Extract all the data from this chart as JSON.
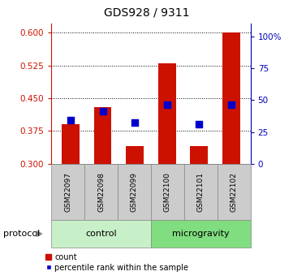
{
  "title": "GDS928 / 9311",
  "samples": [
    "GSM22097",
    "GSM22098",
    "GSM22099",
    "GSM22100",
    "GSM22101",
    "GSM22102"
  ],
  "red_bar_tops": [
    0.39,
    0.43,
    0.34,
    0.53,
    0.34,
    0.601
  ],
  "blue_sq_vals": [
    0.4,
    0.42,
    0.395,
    0.435,
    0.39,
    0.435
  ],
  "bar_bottom": 0.3,
  "ylim_left": [
    0.3,
    0.62
  ],
  "yticks_left": [
    0.3,
    0.375,
    0.45,
    0.525,
    0.6
  ],
  "ylim_right": [
    0,
    110
  ],
  "yticks_right": [
    0,
    25,
    50,
    75,
    100
  ],
  "yticklabels_right": [
    "0",
    "25",
    "50",
    "75",
    "100%"
  ],
  "groups": [
    {
      "label": "control",
      "indices": [
        0,
        1,
        2
      ],
      "color": "#c8f0c8"
    },
    {
      "label": "microgravity",
      "indices": [
        3,
        4,
        5
      ],
      "color": "#80dd80"
    }
  ],
  "bar_color": "#cc1100",
  "sq_color": "#0000cc",
  "tick_color_left": "#cc1100",
  "tick_color_right": "#0000bb",
  "protocol_label": "protocol",
  "legend_count": "count",
  "legend_pct": "percentile rank within the sample",
  "bar_width": 0.55,
  "sq_size": 28
}
